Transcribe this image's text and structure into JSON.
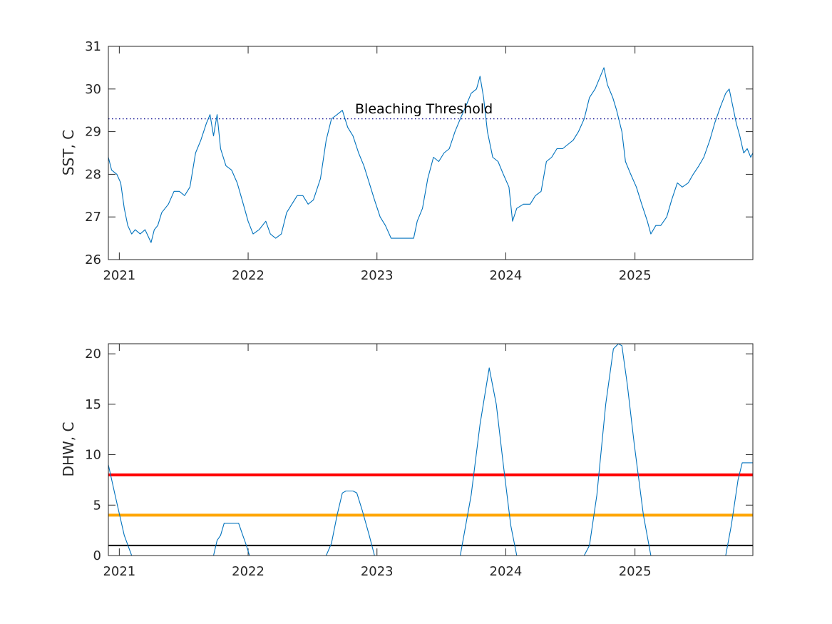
{
  "chart_data": [
    {
      "type": "line",
      "ylabel": "SST, C",
      "xlabel": "",
      "title": "",
      "ylim": [
        26,
        31
      ],
      "yticks": [
        26,
        27,
        28,
        29,
        30,
        31
      ],
      "xlim": [
        "2020-12-01",
        "2025-12-01"
      ],
      "xticks": [
        {
          "date": "2021-01-01",
          "label": "2021"
        },
        {
          "date": "2022-01-01",
          "label": "2022"
        },
        {
          "date": "2023-01-01",
          "label": "2023"
        },
        {
          "date": "2024-01-01",
          "label": "2024"
        },
        {
          "date": "2025-01-01",
          "label": "2025"
        }
      ],
      "grid": false,
      "series": [
        {
          "color": "#0072BD",
          "points": [
            [
              "2020-12-01",
              28.4
            ],
            [
              "2020-12-10",
              28.1
            ],
            [
              "2020-12-25",
              28.0
            ],
            [
              "2021-01-05",
              27.8
            ],
            [
              "2021-01-15",
              27.2
            ],
            [
              "2021-01-25",
              26.8
            ],
            [
              "2021-02-05",
              26.6
            ],
            [
              "2021-02-15",
              26.7
            ],
            [
              "2021-03-01",
              26.6
            ],
            [
              "2021-03-15",
              26.7
            ],
            [
              "2021-04-01",
              26.4
            ],
            [
              "2021-04-10",
              26.7
            ],
            [
              "2021-04-20",
              26.8
            ],
            [
              "2021-05-01",
              27.1
            ],
            [
              "2021-05-20",
              27.3
            ],
            [
              "2021-06-05",
              27.6
            ],
            [
              "2021-06-20",
              27.6
            ],
            [
              "2021-07-05",
              27.5
            ],
            [
              "2021-07-20",
              27.7
            ],
            [
              "2021-08-05",
              28.5
            ],
            [
              "2021-08-20",
              28.8
            ],
            [
              "2021-09-05",
              29.2
            ],
            [
              "2021-09-15",
              29.4
            ],
            [
              "2021-09-25",
              28.9
            ],
            [
              "2021-10-05",
              29.4
            ],
            [
              "2021-10-15",
              28.6
            ],
            [
              "2021-10-30",
              28.2
            ],
            [
              "2021-11-15",
              28.1
            ],
            [
              "2021-12-01",
              27.8
            ],
            [
              "2021-12-15",
              27.4
            ],
            [
              "2022-01-01",
              26.9
            ],
            [
              "2022-01-15",
              26.6
            ],
            [
              "2022-02-01",
              26.7
            ],
            [
              "2022-02-20",
              26.9
            ],
            [
              "2022-03-05",
              26.6
            ],
            [
              "2022-03-20",
              26.5
            ],
            [
              "2022-04-05",
              26.6
            ],
            [
              "2022-04-20",
              27.1
            ],
            [
              "2022-05-05",
              27.3
            ],
            [
              "2022-05-20",
              27.5
            ],
            [
              "2022-06-05",
              27.5
            ],
            [
              "2022-06-20",
              27.3
            ],
            [
              "2022-07-05",
              27.4
            ],
            [
              "2022-07-25",
              27.9
            ],
            [
              "2022-08-10",
              28.8
            ],
            [
              "2022-08-25",
              29.3
            ],
            [
              "2022-09-10",
              29.4
            ],
            [
              "2022-09-25",
              29.5
            ],
            [
              "2022-10-10",
              29.1
            ],
            [
              "2022-10-25",
              28.9
            ],
            [
              "2022-11-10",
              28.5
            ],
            [
              "2022-11-25",
              28.2
            ],
            [
              "2022-12-10",
              27.8
            ],
            [
              "2022-12-25",
              27.4
            ],
            [
              "2023-01-10",
              27.0
            ],
            [
              "2023-01-25",
              26.8
            ],
            [
              "2023-02-10",
              26.5
            ],
            [
              "2023-02-25",
              26.5
            ],
            [
              "2023-03-15",
              26.5
            ],
            [
              "2023-04-01",
              26.5
            ],
            [
              "2023-04-15",
              26.5
            ],
            [
              "2023-04-25",
              26.9
            ],
            [
              "2023-05-10",
              27.2
            ],
            [
              "2023-05-25",
              27.9
            ],
            [
              "2023-06-10",
              28.4
            ],
            [
              "2023-06-25",
              28.3
            ],
            [
              "2023-07-10",
              28.5
            ],
            [
              "2023-07-25",
              28.6
            ],
            [
              "2023-08-10",
              29.0
            ],
            [
              "2023-08-25",
              29.3
            ],
            [
              "2023-09-10",
              29.6
            ],
            [
              "2023-09-25",
              29.9
            ],
            [
              "2023-10-10",
              30.0
            ],
            [
              "2023-10-20",
              30.3
            ],
            [
              "2023-10-30",
              29.8
            ],
            [
              "2023-11-10",
              29.0
            ],
            [
              "2023-11-25",
              28.4
            ],
            [
              "2023-12-10",
              28.3
            ],
            [
              "2023-12-25",
              28.0
            ],
            [
              "2024-01-10",
              27.7
            ],
            [
              "2024-01-20",
              26.9
            ],
            [
              "2024-02-01",
              27.2
            ],
            [
              "2024-02-20",
              27.3
            ],
            [
              "2024-03-10",
              27.3
            ],
            [
              "2024-03-25",
              27.5
            ],
            [
              "2024-04-10",
              27.6
            ],
            [
              "2024-04-25",
              28.3
            ],
            [
              "2024-05-10",
              28.4
            ],
            [
              "2024-05-25",
              28.6
            ],
            [
              "2024-06-10",
              28.6
            ],
            [
              "2024-06-25",
              28.7
            ],
            [
              "2024-07-10",
              28.8
            ],
            [
              "2024-07-25",
              29.0
            ],
            [
              "2024-08-10",
              29.3
            ],
            [
              "2024-08-25",
              29.8
            ],
            [
              "2024-09-10",
              30.0
            ],
            [
              "2024-09-25",
              30.3
            ],
            [
              "2024-10-05",
              30.5
            ],
            [
              "2024-10-15",
              30.1
            ],
            [
              "2024-10-30",
              29.8
            ],
            [
              "2024-11-10",
              29.5
            ],
            [
              "2024-11-25",
              29.0
            ],
            [
              "2024-12-05",
              28.3
            ],
            [
              "2024-12-20",
              28.0
            ],
            [
              "2025-01-05",
              27.7
            ],
            [
              "2025-01-20",
              27.3
            ],
            [
              "2025-02-05",
              26.9
            ],
            [
              "2025-02-15",
              26.6
            ],
            [
              "2025-03-01",
              26.8
            ],
            [
              "2025-03-15",
              26.8
            ],
            [
              "2025-04-01",
              27.0
            ],
            [
              "2025-04-15",
              27.4
            ],
            [
              "2025-05-01",
              27.8
            ],
            [
              "2025-05-15",
              27.7
            ],
            [
              "2025-06-01",
              27.8
            ],
            [
              "2025-06-15",
              28.0
            ],
            [
              "2025-07-01",
              28.2
            ],
            [
              "2025-07-15",
              28.4
            ],
            [
              "2025-08-01",
              28.8
            ],
            [
              "2025-08-15",
              29.2
            ],
            [
              "2025-09-01",
              29.6
            ],
            [
              "2025-09-15",
              29.9
            ],
            [
              "2025-09-25",
              30.0
            ],
            [
              "2025-10-05",
              29.6
            ],
            [
              "2025-10-15",
              29.2
            ],
            [
              "2025-10-25",
              28.9
            ],
            [
              "2025-11-05",
              28.5
            ],
            [
              "2025-11-15",
              28.6
            ],
            [
              "2025-11-25",
              28.4
            ],
            [
              "2025-12-01",
              28.5
            ]
          ]
        }
      ],
      "reference_lines": [
        {
          "y": 29.3,
          "color": "#00008B",
          "style": "dotted",
          "label": "Bleaching Threshold"
        }
      ]
    },
    {
      "type": "line",
      "ylabel": "DHW, C",
      "xlabel": "",
      "title": "",
      "ylim": [
        0,
        21
      ],
      "yticks": [
        0,
        5,
        10,
        15,
        20
      ],
      "xlim": [
        "2020-12-01",
        "2025-12-01"
      ],
      "xticks": [
        {
          "date": "2021-01-01",
          "label": "2021"
        },
        {
          "date": "2022-01-01",
          "label": "2022"
        },
        {
          "date": "2023-01-01",
          "label": "2023"
        },
        {
          "date": "2024-01-01",
          "label": "2024"
        },
        {
          "date": "2025-01-01",
          "label": "2025"
        }
      ],
      "grid": false,
      "series": [
        {
          "color": "#0072BD",
          "points": [
            [
              "2020-12-01",
              9.0
            ],
            [
              "2020-12-20",
              6.0
            ],
            [
              "2021-01-15",
              2.0
            ],
            [
              "2021-02-05",
              0.0
            ],
            [
              "2021-09-25",
              0.0
            ],
            [
              "2021-10-05",
              1.5
            ],
            [
              "2021-10-15",
              2.0
            ],
            [
              "2021-10-25",
              3.2
            ],
            [
              "2021-12-05",
              3.2
            ],
            [
              "2021-12-15",
              2.2
            ],
            [
              "2021-12-25",
              1.2
            ],
            [
              "2022-01-05",
              0.0
            ],
            [
              "2022-08-10",
              0.0
            ],
            [
              "2022-08-25",
              1.2
            ],
            [
              "2022-09-10",
              4.0
            ],
            [
              "2022-09-25",
              6.2
            ],
            [
              "2022-10-05",
              6.4
            ],
            [
              "2022-10-25",
              6.4
            ],
            [
              "2022-11-05",
              6.2
            ],
            [
              "2022-11-20",
              4.5
            ],
            [
              "2022-12-10",
              2.0
            ],
            [
              "2022-12-25",
              0.0
            ],
            [
              "2023-08-25",
              0.0
            ],
            [
              "2023-09-25",
              6.0
            ],
            [
              "2023-10-20",
              13.0
            ],
            [
              "2023-11-15",
              18.6
            ],
            [
              "2023-12-05",
              15.0
            ],
            [
              "2023-12-25",
              9.0
            ],
            [
              "2024-01-15",
              3.0
            ],
            [
              "2024-02-01",
              0.0
            ],
            [
              "2024-08-10",
              0.0
            ],
            [
              "2024-08-25",
              1.0
            ],
            [
              "2024-09-15",
              6.0
            ],
            [
              "2024-10-10",
              15.0
            ],
            [
              "2024-11-01",
              20.5
            ],
            [
              "2024-11-15",
              21.0
            ],
            [
              "2024-11-25",
              20.8
            ],
            [
              "2024-12-10",
              17.0
            ],
            [
              "2024-12-30",
              11.0
            ],
            [
              "2025-01-25",
              4.0
            ],
            [
              "2025-02-15",
              0.0
            ],
            [
              "2025-09-15",
              0.0
            ],
            [
              "2025-10-01",
              3.0
            ],
            [
              "2025-10-20",
              7.5
            ],
            [
              "2025-11-01",
              9.2
            ],
            [
              "2025-12-01",
              9.2
            ]
          ]
        }
      ],
      "reference_lines": [
        {
          "y": 8,
          "color": "#FF0000",
          "style": "solid"
        },
        {
          "y": 4,
          "color": "#FFA500",
          "style": "solid"
        },
        {
          "y": 1,
          "color": "#000000",
          "style": "solid"
        }
      ]
    }
  ]
}
